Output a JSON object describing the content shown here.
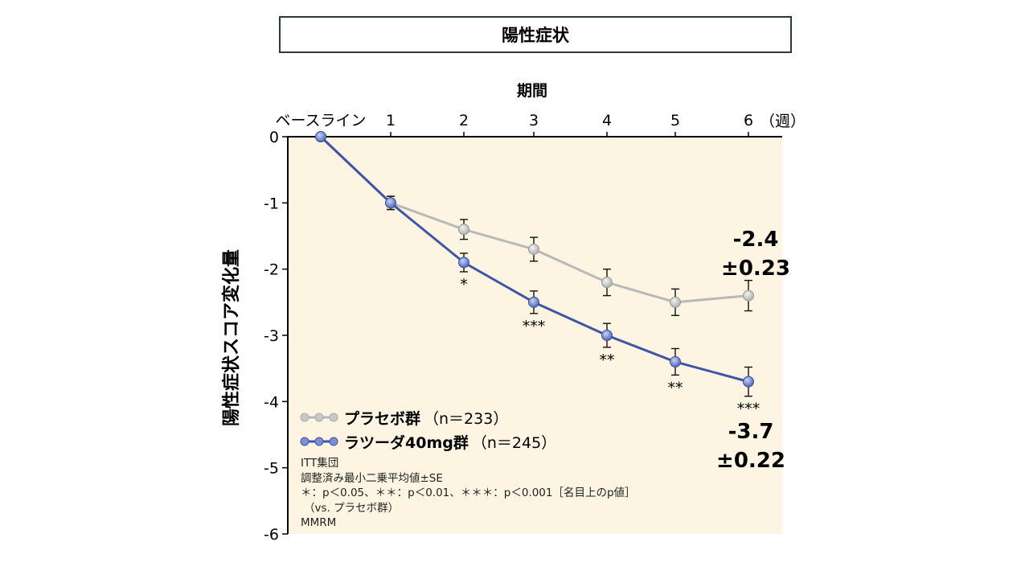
{
  "title": "陽性症状",
  "chart_data": {
    "type": "line",
    "xlabel": "期間",
    "x_unit": "（週）",
    "ylabel": "陽性症状スコア変化量",
    "categories": [
      "ベースライン",
      "1",
      "2",
      "3",
      "4",
      "5",
      "6"
    ],
    "ylim": [
      -6,
      0
    ],
    "yticks": [
      "0",
      "-1",
      "-2",
      "-3",
      "-4",
      "-5",
      "-6"
    ],
    "series": [
      {
        "name": "プラセボ群",
        "n_label": "（n＝233）",
        "color": "#b9b9b9",
        "values": [
          0,
          -1.0,
          -1.4,
          -1.7,
          -2.2,
          -2.5,
          -2.4
        ],
        "errors": [
          0,
          0.1,
          0.15,
          0.18,
          0.2,
          0.2,
          0.23
        ]
      },
      {
        "name": "ラツーダ40mg群",
        "n_label": "（n＝245）",
        "color": "#3f55a8",
        "values": [
          0,
          -1.0,
          -1.9,
          -2.5,
          -3.0,
          -3.4,
          -3.7
        ],
        "errors": [
          0,
          0.1,
          0.14,
          0.17,
          0.18,
          0.2,
          0.22
        ]
      }
    ],
    "significance": [
      "",
      "",
      "*",
      "***",
      "**",
      "**",
      "***"
    ],
    "annotations": {
      "placebo_final": [
        "-2.4",
        "±0.23"
      ],
      "drug_final": [
        "-3.7",
        "±0.22"
      ]
    }
  },
  "notes": [
    "ITT集団",
    "調整済み最小二乗平均値±SE",
    "＊：p＜0.05、＊＊：p＜0.01、＊＊＊：p＜0.001［名目上のp値］",
    "（vs. プラセボ群）",
    "MMRM"
  ]
}
